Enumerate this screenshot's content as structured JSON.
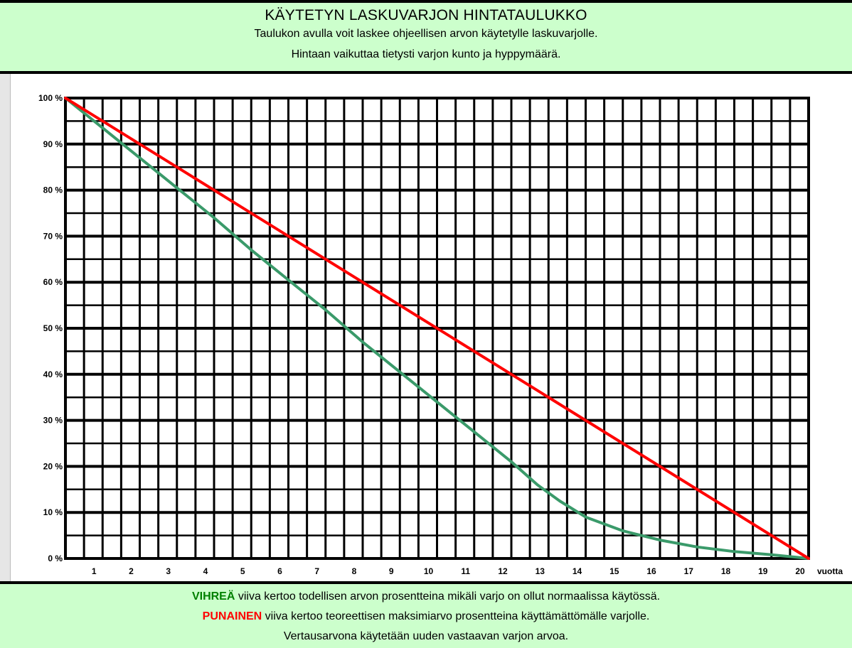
{
  "header": {
    "title": "KÄYTETYN LASKUVARJON HINTATAULUKKO",
    "subtitle1": "Taulukon avulla voit laskee ohjeellisen arvon käytetylle laskuvarjolle.",
    "subtitle2": "Hintaan vaikuttaa tietysti varjon kunto ja hyppymäärä."
  },
  "footer": {
    "green_word": "VIHREÄ",
    "green_text": " viiva kertoo todellisen arvon prosentteina mikäli varjo on ollut normaalissa käytössä.",
    "red_word": "PUNAINEN",
    "red_text": " viiva kertoo teoreettisen maksimiarvo prosentteina käyttämättömälle varjolle.",
    "note": "Vertausarvona käytetään uuden vastaavan varjon arvoa."
  },
  "colors": {
    "header_bg": "#ccffcc",
    "green_line": "#3a9a6a",
    "red_line": "#ff0000",
    "green_text": "#008000",
    "red_text": "#ff0000"
  },
  "chart_data": {
    "type": "line",
    "xlabel": "vuotta",
    "x_ticks": [
      "1",
      "2",
      "3",
      "4",
      "5",
      "6",
      "7",
      "8",
      "9",
      "10",
      "11",
      "12",
      "13",
      "14",
      "15",
      "16",
      "17",
      "18",
      "19",
      "20"
    ],
    "y_ticks": [
      "0 %",
      "10 %",
      "20 %",
      "30 %",
      "40 %",
      "50 %",
      "60 %",
      "70 %",
      "80 %",
      "90 %",
      "100 %"
    ],
    "xlim": [
      0,
      20
    ],
    "ylim": [
      0,
      100
    ],
    "grid": true,
    "series": [
      {
        "color": "red",
        "x": [
          0,
          20
        ],
        "y": [
          100,
          0
        ]
      },
      {
        "color": "green",
        "x": [
          0,
          1,
          2,
          3,
          4,
          5,
          6,
          7,
          8,
          9,
          10,
          11,
          12,
          12.7,
          13.3,
          14,
          15,
          16,
          17,
          18,
          19,
          20
        ],
        "y": [
          100,
          93.5,
          87,
          80.5,
          74,
          67,
          60.5,
          54,
          47,
          40.5,
          34,
          27.5,
          21,
          16,
          12.5,
          9,
          6,
          4,
          2.5,
          1.5,
          0.8,
          0
        ]
      }
    ]
  }
}
